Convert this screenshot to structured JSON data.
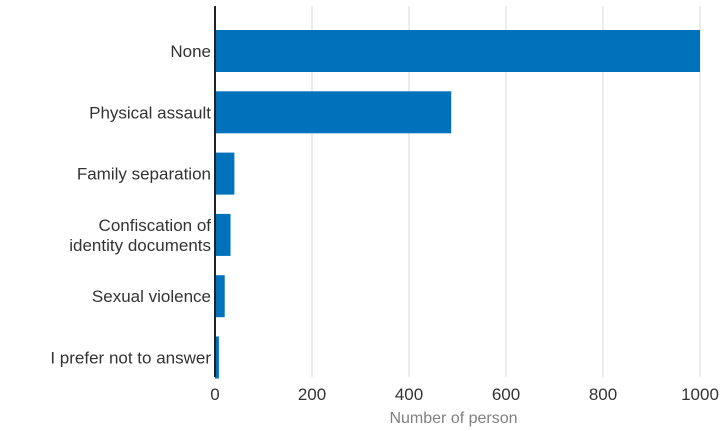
{
  "chart_data": {
    "type": "bar",
    "orientation": "horizontal",
    "categories": [
      "None",
      "Physical assault",
      "Family separation",
      "Confiscation of identity documents",
      "Sexual violence",
      "I prefer not to answer"
    ],
    "category_label_lines": [
      [
        "None"
      ],
      [
        "Physical assault"
      ],
      [
        "Family separation"
      ],
      [
        "Confiscation of",
        "identity documents"
      ],
      [
        "Sexual violence"
      ],
      [
        "I prefer not to answer"
      ]
    ],
    "values": [
      1000,
      487,
      40,
      32,
      20,
      8
    ],
    "xlabel": "Number of person",
    "ylabel": "",
    "xlim": [
      0,
      1000
    ],
    "xticks": [
      0,
      200,
      400,
      600,
      800,
      1000
    ],
    "grid": "vertical",
    "bar_color": "#0072bc"
  }
}
